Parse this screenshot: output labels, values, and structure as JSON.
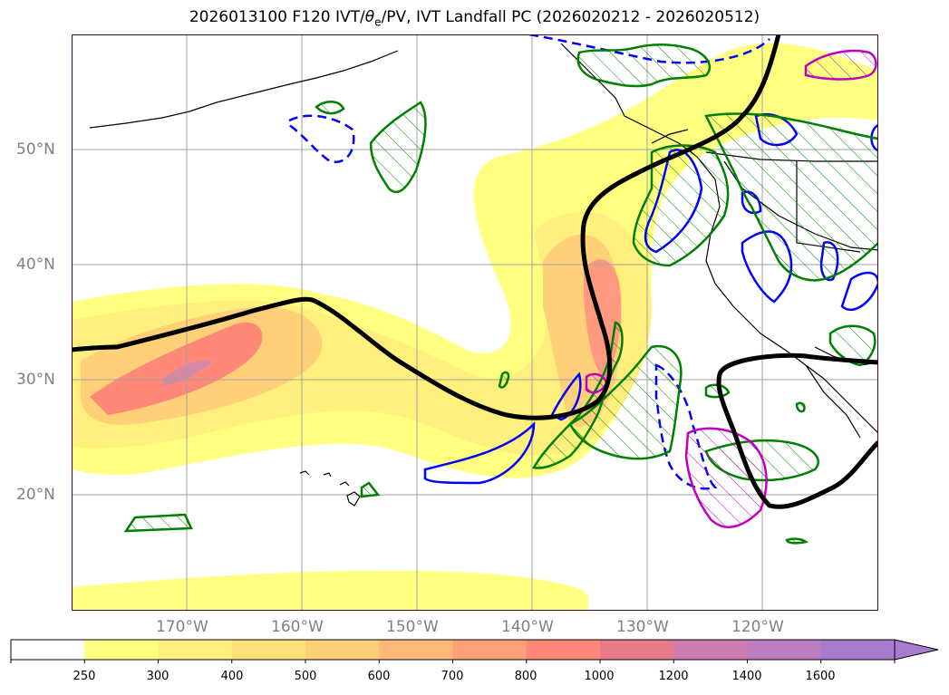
{
  "title": {
    "prefix": "2026013100 F120 IVT/",
    "theta": "θ",
    "theta_sub": "e",
    "suffix": "/PV, IVT Landfall PC (2026020212 - 2026020512)"
  },
  "map": {
    "projection": "cylindrical lat/lon",
    "extent": {
      "lon_min": -180,
      "lon_max": -110,
      "lat_min": 10,
      "lat_max": 60
    },
    "gridlines": true,
    "lat_labels": [
      "50°N",
      "40°N",
      "30°N",
      "20°N"
    ],
    "lon_labels": [
      "170°W",
      "160°W",
      "150°W",
      "140°W",
      "130°W",
      "120°W"
    ],
    "colors": {
      "frame": "#3a0a3a",
      "grid": "#a0a0a0",
      "coast": "#000000",
      "contour_black": "#000000",
      "contour_green": "#008000",
      "contour_blue": "#0000ff",
      "contour_magenta": "#c000c0"
    }
  },
  "colorbar": {
    "levels": [
      "250",
      "300",
      "400",
      "500",
      "600",
      "700",
      "800",
      "1000",
      "1200",
      "1400",
      "1600"
    ],
    "colors": [
      "#ffffff",
      "#ffff80",
      "#ffef7c",
      "#ffe07a",
      "#ffd078",
      "#ffb878",
      "#ffa078",
      "#ff8878",
      "#e67a88",
      "#cc7ab0",
      "#bb7dc0",
      "#a87ccc"
    ],
    "extend": "max"
  }
}
